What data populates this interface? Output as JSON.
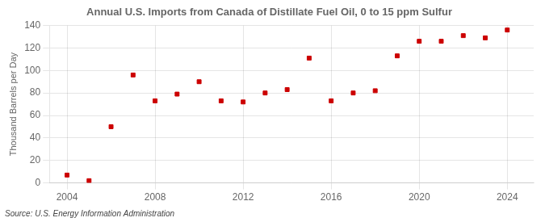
{
  "chart_data": {
    "type": "scatter",
    "title": "Annual U.S. Imports from Canada of Distillate Fuel Oil, 0 to 15 ppm Sulfur",
    "ylabel": "Thousand Barrels per Day",
    "source": "Source: U.S. Energy Information Administration",
    "x": [
      2004,
      2005,
      2006,
      2007,
      2008,
      2009,
      2010,
      2011,
      2012,
      2013,
      2014,
      2015,
      2016,
      2017,
      2018,
      2019,
      2020,
      2021,
      2022,
      2023,
      2024
    ],
    "values": [
      7,
      2,
      50,
      96,
      73,
      79,
      90,
      73,
      72,
      80,
      83,
      111,
      73,
      80,
      82,
      113,
      126,
      126,
      131,
      129,
      136
    ],
    "color": "#cc0000",
    "marker": "square",
    "xlim": [
      2003.2,
      2025.2
    ],
    "xticks": [
      2004,
      2008,
      2012,
      2016,
      2020,
      2024
    ],
    "ylim": [
      0,
      140
    ],
    "yticks": [
      0,
      20,
      40,
      60,
      80,
      100,
      120,
      140
    ],
    "grid": true
  }
}
